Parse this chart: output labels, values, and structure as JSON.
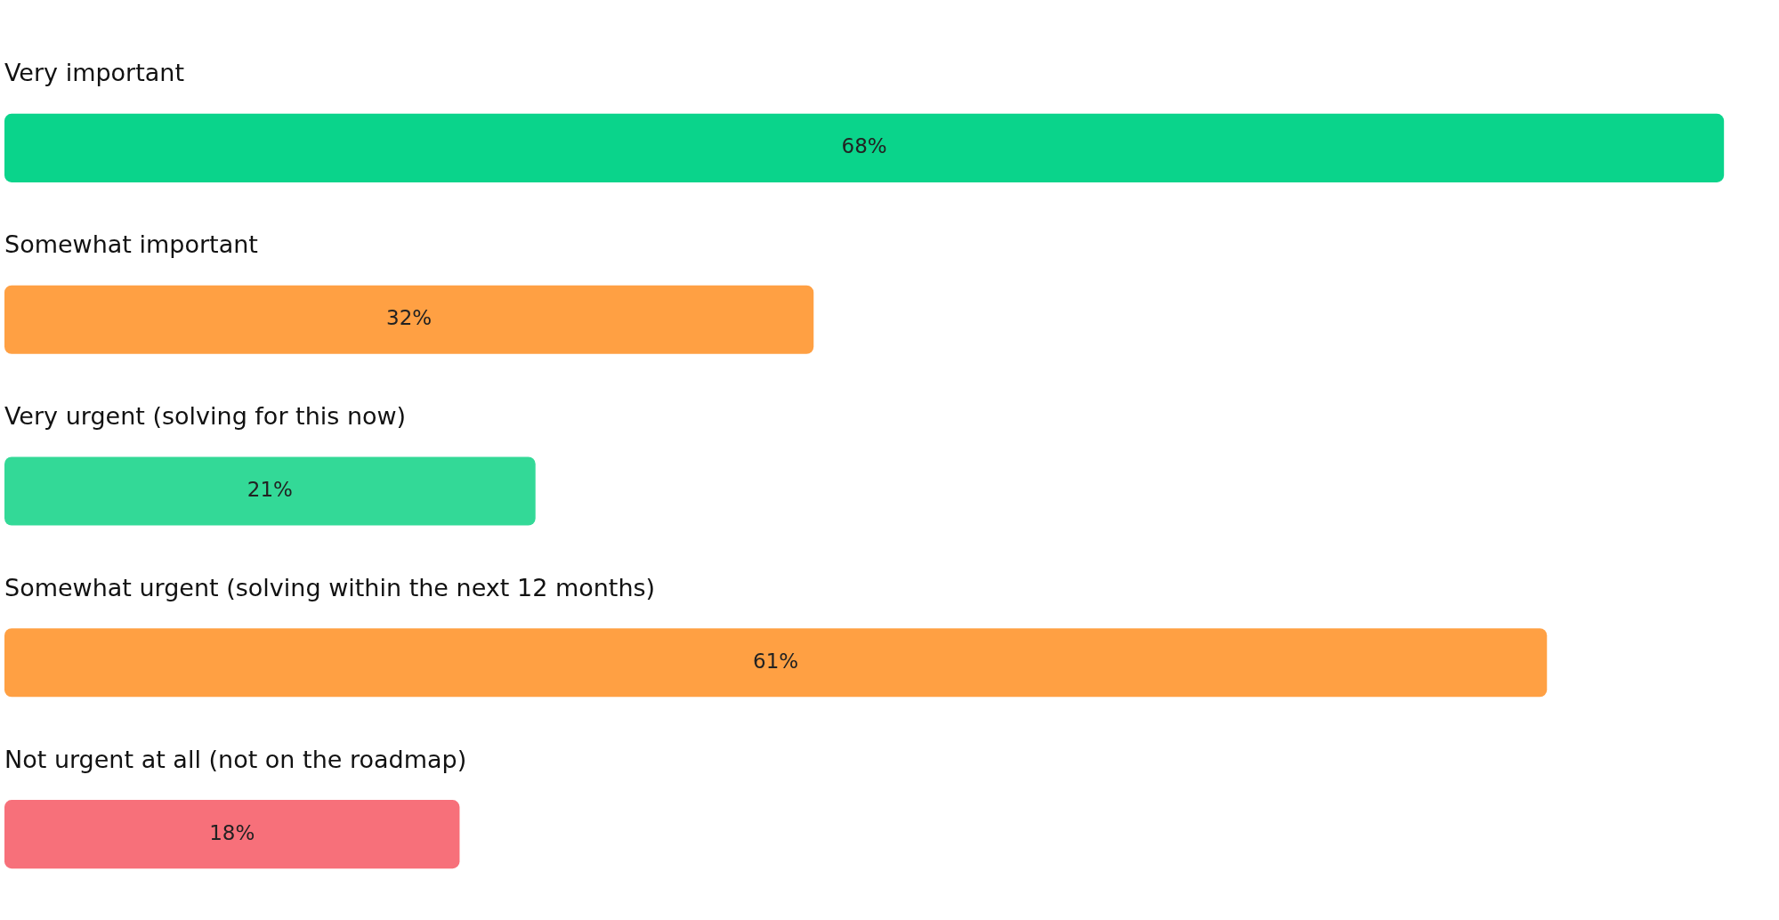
{
  "chart_data": {
    "type": "bar",
    "orientation": "horizontal",
    "categories": [
      "Very important",
      "Somewhat important",
      "Very urgent (solving for this now)",
      "Somewhat urgent (solving within the next 12 months)",
      "Not urgent at all (not on the roadmap)"
    ],
    "values": [
      68,
      32,
      21,
      61,
      18
    ],
    "colors": [
      "#0ad48b",
      "#ffa043",
      "#33d997",
      "#ffa043",
      "#f7707a"
    ],
    "value_labels": [
      "68%",
      "32%",
      "21%",
      "61%",
      "18%"
    ],
    "grid": false,
    "legend": false,
    "tick_labels": false
  }
}
